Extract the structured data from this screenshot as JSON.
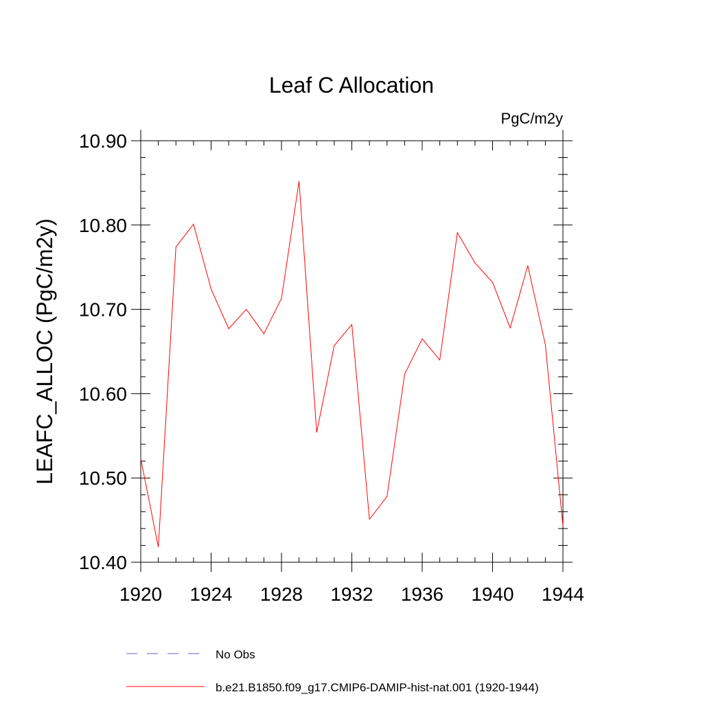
{
  "chart_data": {
    "type": "line",
    "title": "Leaf C Allocation",
    "units": "PgC/m2y",
    "ylabel": "LEAFC_ALLOC  (PgC/m2y)",
    "xlabel": "",
    "xlim": [
      1920,
      1944
    ],
    "ylim": [
      10.4,
      10.9
    ],
    "xticks": [
      1920,
      1924,
      1928,
      1932,
      1936,
      1940,
      1944
    ],
    "yticks": [
      10.4,
      10.5,
      10.6,
      10.7,
      10.8,
      10.9
    ],
    "ytick_labels": [
      "10.40",
      "10.50",
      "10.60",
      "10.70",
      "10.80",
      "10.90"
    ],
    "grid": false,
    "legend": "bottom",
    "series": [
      {
        "name": "No Obs",
        "color": "#6a5acd",
        "style": "dashed",
        "x": [],
        "y": []
      },
      {
        "name": "b.e21.B1850.f09_g17.CMIP6-DAMIP-hist-nat.001 (1920-1944)",
        "color": "#ff0000",
        "style": "solid",
        "x": [
          1920,
          1921,
          1922,
          1923,
          1924,
          1925,
          1926,
          1927,
          1928,
          1929,
          1930,
          1931,
          1932,
          1933,
          1934,
          1935,
          1936,
          1937,
          1938,
          1939,
          1940,
          1941,
          1942,
          1943,
          1944
        ],
        "y": [
          10.523,
          10.418,
          10.774,
          10.801,
          10.724,
          10.677,
          10.7,
          10.671,
          10.713,
          10.852,
          10.554,
          10.657,
          10.682,
          10.451,
          10.478,
          10.623,
          10.665,
          10.64,
          10.791,
          10.755,
          10.732,
          10.678,
          10.752,
          10.658,
          10.443
        ]
      }
    ]
  }
}
